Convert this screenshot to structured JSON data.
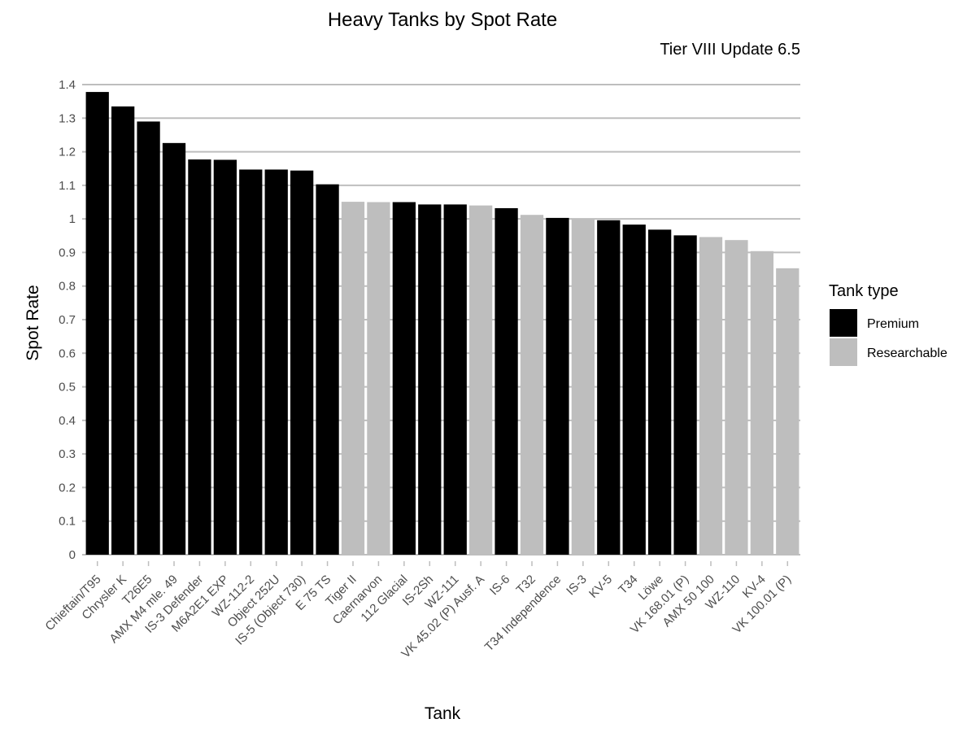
{
  "chart_data": {
    "type": "bar",
    "title": "Heavy Tanks by Spot Rate",
    "subtitle": "Tier VIII Update 6.5",
    "xlabel": "Tank",
    "ylabel": "Spot Rate",
    "ylim": [
      0,
      1.4
    ],
    "yticks": [
      0,
      0.1,
      0.2,
      0.3,
      0.4,
      0.5,
      0.6,
      0.7,
      0.8,
      0.9,
      1,
      1.1,
      1.2,
      1.3,
      1.4
    ],
    "ytick_labels": [
      "0",
      "0.1",
      "0.2",
      "0.3",
      "0.4",
      "0.5",
      "0.6",
      "0.7",
      "0.8",
      "0.9",
      "1",
      "1.1",
      "1.2",
      "1.3",
      "1.4"
    ],
    "grid": "horizontal",
    "legend": {
      "title": "Tank type",
      "position": "right",
      "entries": [
        {
          "label": "Premium",
          "color": "#000000"
        },
        {
          "label": "Researchable",
          "color": "#bebebe"
        }
      ]
    },
    "categories": [
      "Chieftain/T95",
      "Chrysler K",
      "T26E5",
      "AMX M4 mle. 49",
      "IS-3 Defender",
      "M6A2E1 EXP",
      "WZ-112-2",
      "Object 252U",
      "IS-5 (Object 730)",
      "E 75 TS",
      "Tiger II",
      "Caernarvon",
      "112 Glacial",
      "IS-2Sh",
      "WZ-111",
      "VK 45.02 (P) Ausf. A",
      "IS-6",
      "T32",
      "T34 Independence",
      "IS-3",
      "KV-5",
      "T34",
      "Löwe",
      "VK 168.01 (P)",
      "AMX 50 100",
      "WZ-110",
      "KV-4",
      "VK 100.01 (P)"
    ],
    "values": [
      1.378,
      1.335,
      1.29,
      1.226,
      1.177,
      1.176,
      1.147,
      1.147,
      1.144,
      1.103,
      1.051,
      1.05,
      1.05,
      1.043,
      1.043,
      1.04,
      1.032,
      1.012,
      1.003,
      1.0,
      0.996,
      0.983,
      0.968,
      0.951,
      0.946,
      0.937,
      0.904,
      0.853
    ],
    "types": [
      "Premium",
      "Premium",
      "Premium",
      "Premium",
      "Premium",
      "Premium",
      "Premium",
      "Premium",
      "Premium",
      "Premium",
      "Researchable",
      "Researchable",
      "Premium",
      "Premium",
      "Premium",
      "Researchable",
      "Premium",
      "Researchable",
      "Premium",
      "Researchable",
      "Premium",
      "Premium",
      "Premium",
      "Premium",
      "Researchable",
      "Researchable",
      "Researchable",
      "Researchable"
    ]
  }
}
